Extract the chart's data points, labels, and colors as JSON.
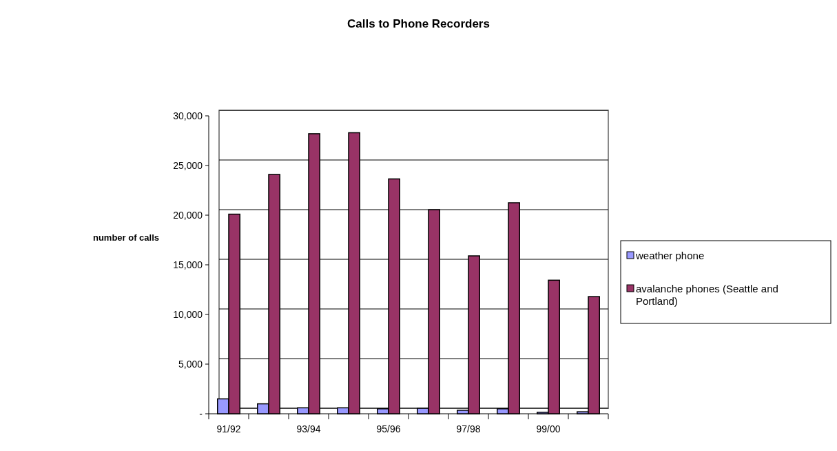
{
  "chart_data": {
    "type": "bar",
    "title": "Calls to Phone Recorders",
    "ylabel": "number of calls",
    "categories": [
      "91/92",
      null,
      "93/94",
      null,
      "95/96",
      null,
      "97/98",
      null,
      "99/00",
      null
    ],
    "series": [
      {
        "name": "weather phone",
        "color": "#9999ff",
        "values": [
          1500,
          1000,
          600,
          600,
          500,
          550,
          350,
          500,
          150,
          200
        ]
      },
      {
        "name": "avalanche phones (Seattle and Portland)",
        "color": "#993366",
        "values": [
          20100,
          24100,
          28200,
          28300,
          23650,
          20550,
          15900,
          21250,
          13450,
          11800
        ]
      }
    ],
    "ylim": [
      0,
      30000
    ],
    "yticks": [
      {
        "value": 0,
        "label": "-"
      },
      {
        "value": 5000,
        "label": "5,000"
      },
      {
        "value": 10000,
        "label": "10,000"
      },
      {
        "value": 15000,
        "label": "15,000"
      },
      {
        "value": 20000,
        "label": "20,000"
      },
      {
        "value": 25000,
        "label": "25,000"
      },
      {
        "value": 30000,
        "label": "30,000"
      }
    ],
    "grid": "y",
    "legend": "right"
  }
}
